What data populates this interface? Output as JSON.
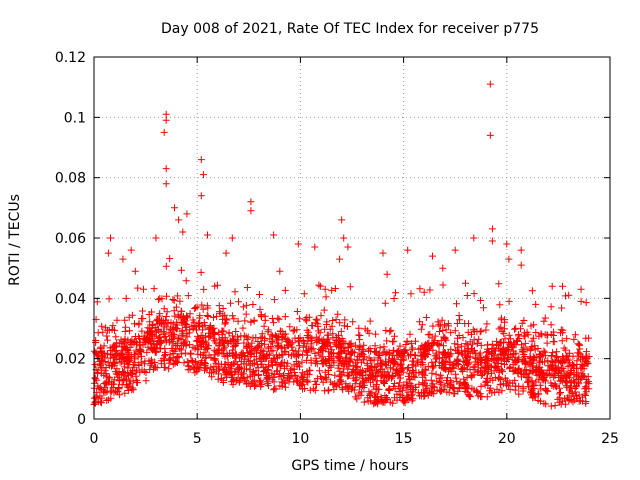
{
  "chart_data": {
    "type": "scatter",
    "title": "Day 008 of 2021, Rate Of TEC Index for receiver p775",
    "xlabel": "GPS time / hours",
    "ylabel": "ROTI / TECUs",
    "xlim": [
      0,
      25
    ],
    "ylim": [
      0,
      0.12
    ],
    "xticks": [
      0,
      5,
      10,
      15,
      20,
      25
    ],
    "yticks": [
      0,
      0.02,
      0.04,
      0.06,
      0.08,
      0.1,
      0.12
    ],
    "xtick_labels": [
      "0",
      "5",
      "10",
      "15",
      "20",
      "25"
    ],
    "ytick_labels": [
      "0",
      "0.02",
      "0.04",
      "0.06",
      "0.08",
      "0.1",
      "0.12"
    ],
    "grid": true,
    "marker": "+",
    "series": [
      {
        "name": "ROTI",
        "color": "#ff0000",
        "x_range": [
          0,
          24
        ],
        "baseline_profile": [
          [
            0,
            0.013
          ],
          [
            1,
            0.016
          ],
          [
            2,
            0.019
          ],
          [
            3,
            0.024
          ],
          [
            4,
            0.026
          ],
          [
            5,
            0.024
          ],
          [
            6,
            0.021
          ],
          [
            7,
            0.02
          ],
          [
            8,
            0.018
          ],
          [
            9,
            0.019
          ],
          [
            10,
            0.019
          ],
          [
            11,
            0.018
          ],
          [
            12,
            0.019
          ],
          [
            13,
            0.014
          ],
          [
            14,
            0.014
          ],
          [
            15,
            0.014
          ],
          [
            16,
            0.016
          ],
          [
            17,
            0.018
          ],
          [
            18,
            0.016
          ],
          [
            19,
            0.016
          ],
          [
            20,
            0.019
          ],
          [
            21,
            0.016
          ],
          [
            22,
            0.013
          ],
          [
            23,
            0.014
          ],
          [
            24,
            0.014
          ]
        ],
        "notable_points": [
          {
            "x": 0.1,
            "y": 0.033
          },
          {
            "x": 0.7,
            "y": 0.055
          },
          {
            "x": 0.8,
            "y": 0.06
          },
          {
            "x": 1.4,
            "y": 0.053
          },
          {
            "x": 1.8,
            "y": 0.056
          },
          {
            "x": 2.0,
            "y": 0.049
          },
          {
            "x": 2.4,
            "y": 0.043
          },
          {
            "x": 3.0,
            "y": 0.06
          },
          {
            "x": 3.4,
            "y": 0.095
          },
          {
            "x": 3.5,
            "y": 0.101
          },
          {
            "x": 3.5,
            "y": 0.099
          },
          {
            "x": 3.5,
            "y": 0.083
          },
          {
            "x": 3.5,
            "y": 0.078
          },
          {
            "x": 3.9,
            "y": 0.07
          },
          {
            "x": 4.1,
            "y": 0.066
          },
          {
            "x": 4.3,
            "y": 0.062
          },
          {
            "x": 4.5,
            "y": 0.068
          },
          {
            "x": 5.2,
            "y": 0.086
          },
          {
            "x": 5.2,
            "y": 0.074
          },
          {
            "x": 5.3,
            "y": 0.081
          },
          {
            "x": 5.5,
            "y": 0.061
          },
          {
            "x": 6.4,
            "y": 0.055
          },
          {
            "x": 6.7,
            "y": 0.06
          },
          {
            "x": 7.6,
            "y": 0.072
          },
          {
            "x": 7.6,
            "y": 0.069
          },
          {
            "x": 8.7,
            "y": 0.061
          },
          {
            "x": 9.0,
            "y": 0.049
          },
          {
            "x": 9.9,
            "y": 0.058
          },
          {
            "x": 10.7,
            "y": 0.057
          },
          {
            "x": 11.2,
            "y": 0.043
          },
          {
            "x": 12.0,
            "y": 0.066
          },
          {
            "x": 12.1,
            "y": 0.06
          },
          {
            "x": 12.3,
            "y": 0.057
          },
          {
            "x": 11.9,
            "y": 0.053
          },
          {
            "x": 14.0,
            "y": 0.055
          },
          {
            "x": 14.2,
            "y": 0.048
          },
          {
            "x": 15.2,
            "y": 0.056
          },
          {
            "x": 16.0,
            "y": 0.042
          },
          {
            "x": 16.4,
            "y": 0.054
          },
          {
            "x": 16.9,
            "y": 0.05
          },
          {
            "x": 17.5,
            "y": 0.056
          },
          {
            "x": 18.0,
            "y": 0.045
          },
          {
            "x": 18.4,
            "y": 0.06
          },
          {
            "x": 19.2,
            "y": 0.111
          },
          {
            "x": 19.2,
            "y": 0.094
          },
          {
            "x": 19.3,
            "y": 0.063
          },
          {
            "x": 19.3,
            "y": 0.059
          },
          {
            "x": 20.0,
            "y": 0.058
          },
          {
            "x": 20.1,
            "y": 0.053
          },
          {
            "x": 20.7,
            "y": 0.056
          },
          {
            "x": 20.7,
            "y": 0.051
          },
          {
            "x": 21.4,
            "y": 0.038
          },
          {
            "x": 22.2,
            "y": 0.044
          },
          {
            "x": 22.7,
            "y": 0.044
          },
          {
            "x": 23.6,
            "y": 0.043
          },
          {
            "x": 23.6,
            "y": 0.039
          }
        ]
      }
    ]
  }
}
